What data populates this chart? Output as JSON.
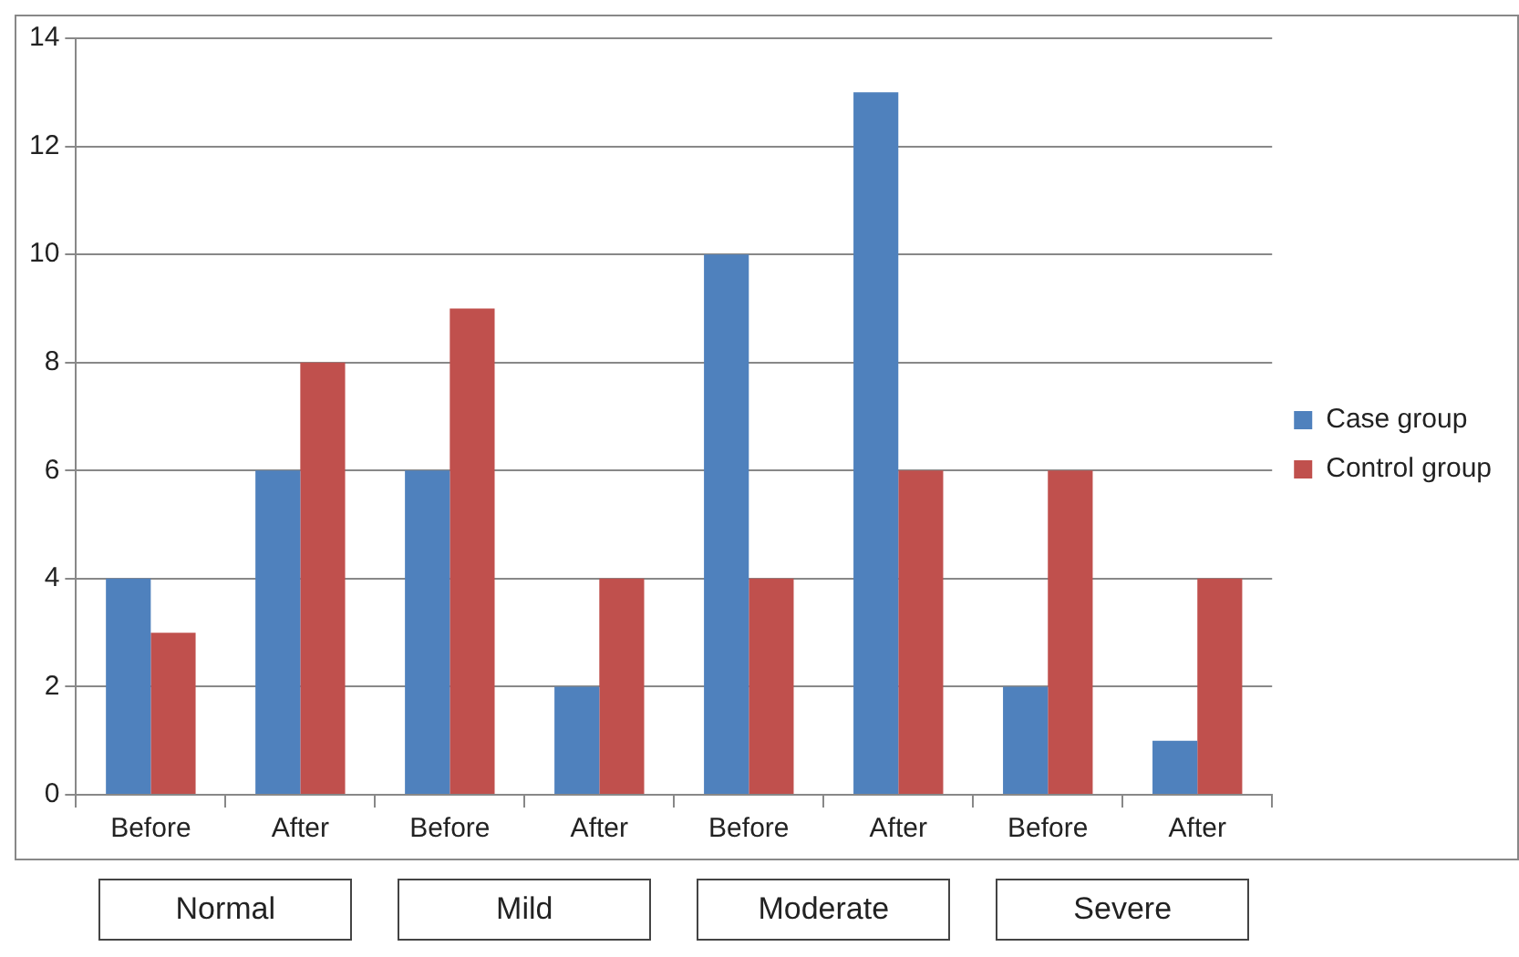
{
  "chart_data": {
    "type": "bar",
    "categories": [
      "Before",
      "After",
      "Before",
      "After",
      "Before",
      "After",
      "Before",
      "After"
    ],
    "series": [
      {
        "name": "Case group",
        "color": "#4f81bd",
        "values": [
          4,
          6,
          6,
          2,
          10,
          13,
          2,
          1
        ]
      },
      {
        "name": "Control group",
        "color": "#c0504d",
        "values": [
          3,
          8,
          9,
          4,
          4,
          6,
          6,
          4
        ]
      }
    ],
    "ylim": [
      0,
      14
    ],
    "yticks": [
      0,
      2,
      4,
      6,
      8,
      10,
      12,
      14
    ],
    "grid": "y",
    "legend": "right",
    "annotations": [
      "Normal",
      "Mild",
      "Moderate",
      "Severe"
    ]
  }
}
